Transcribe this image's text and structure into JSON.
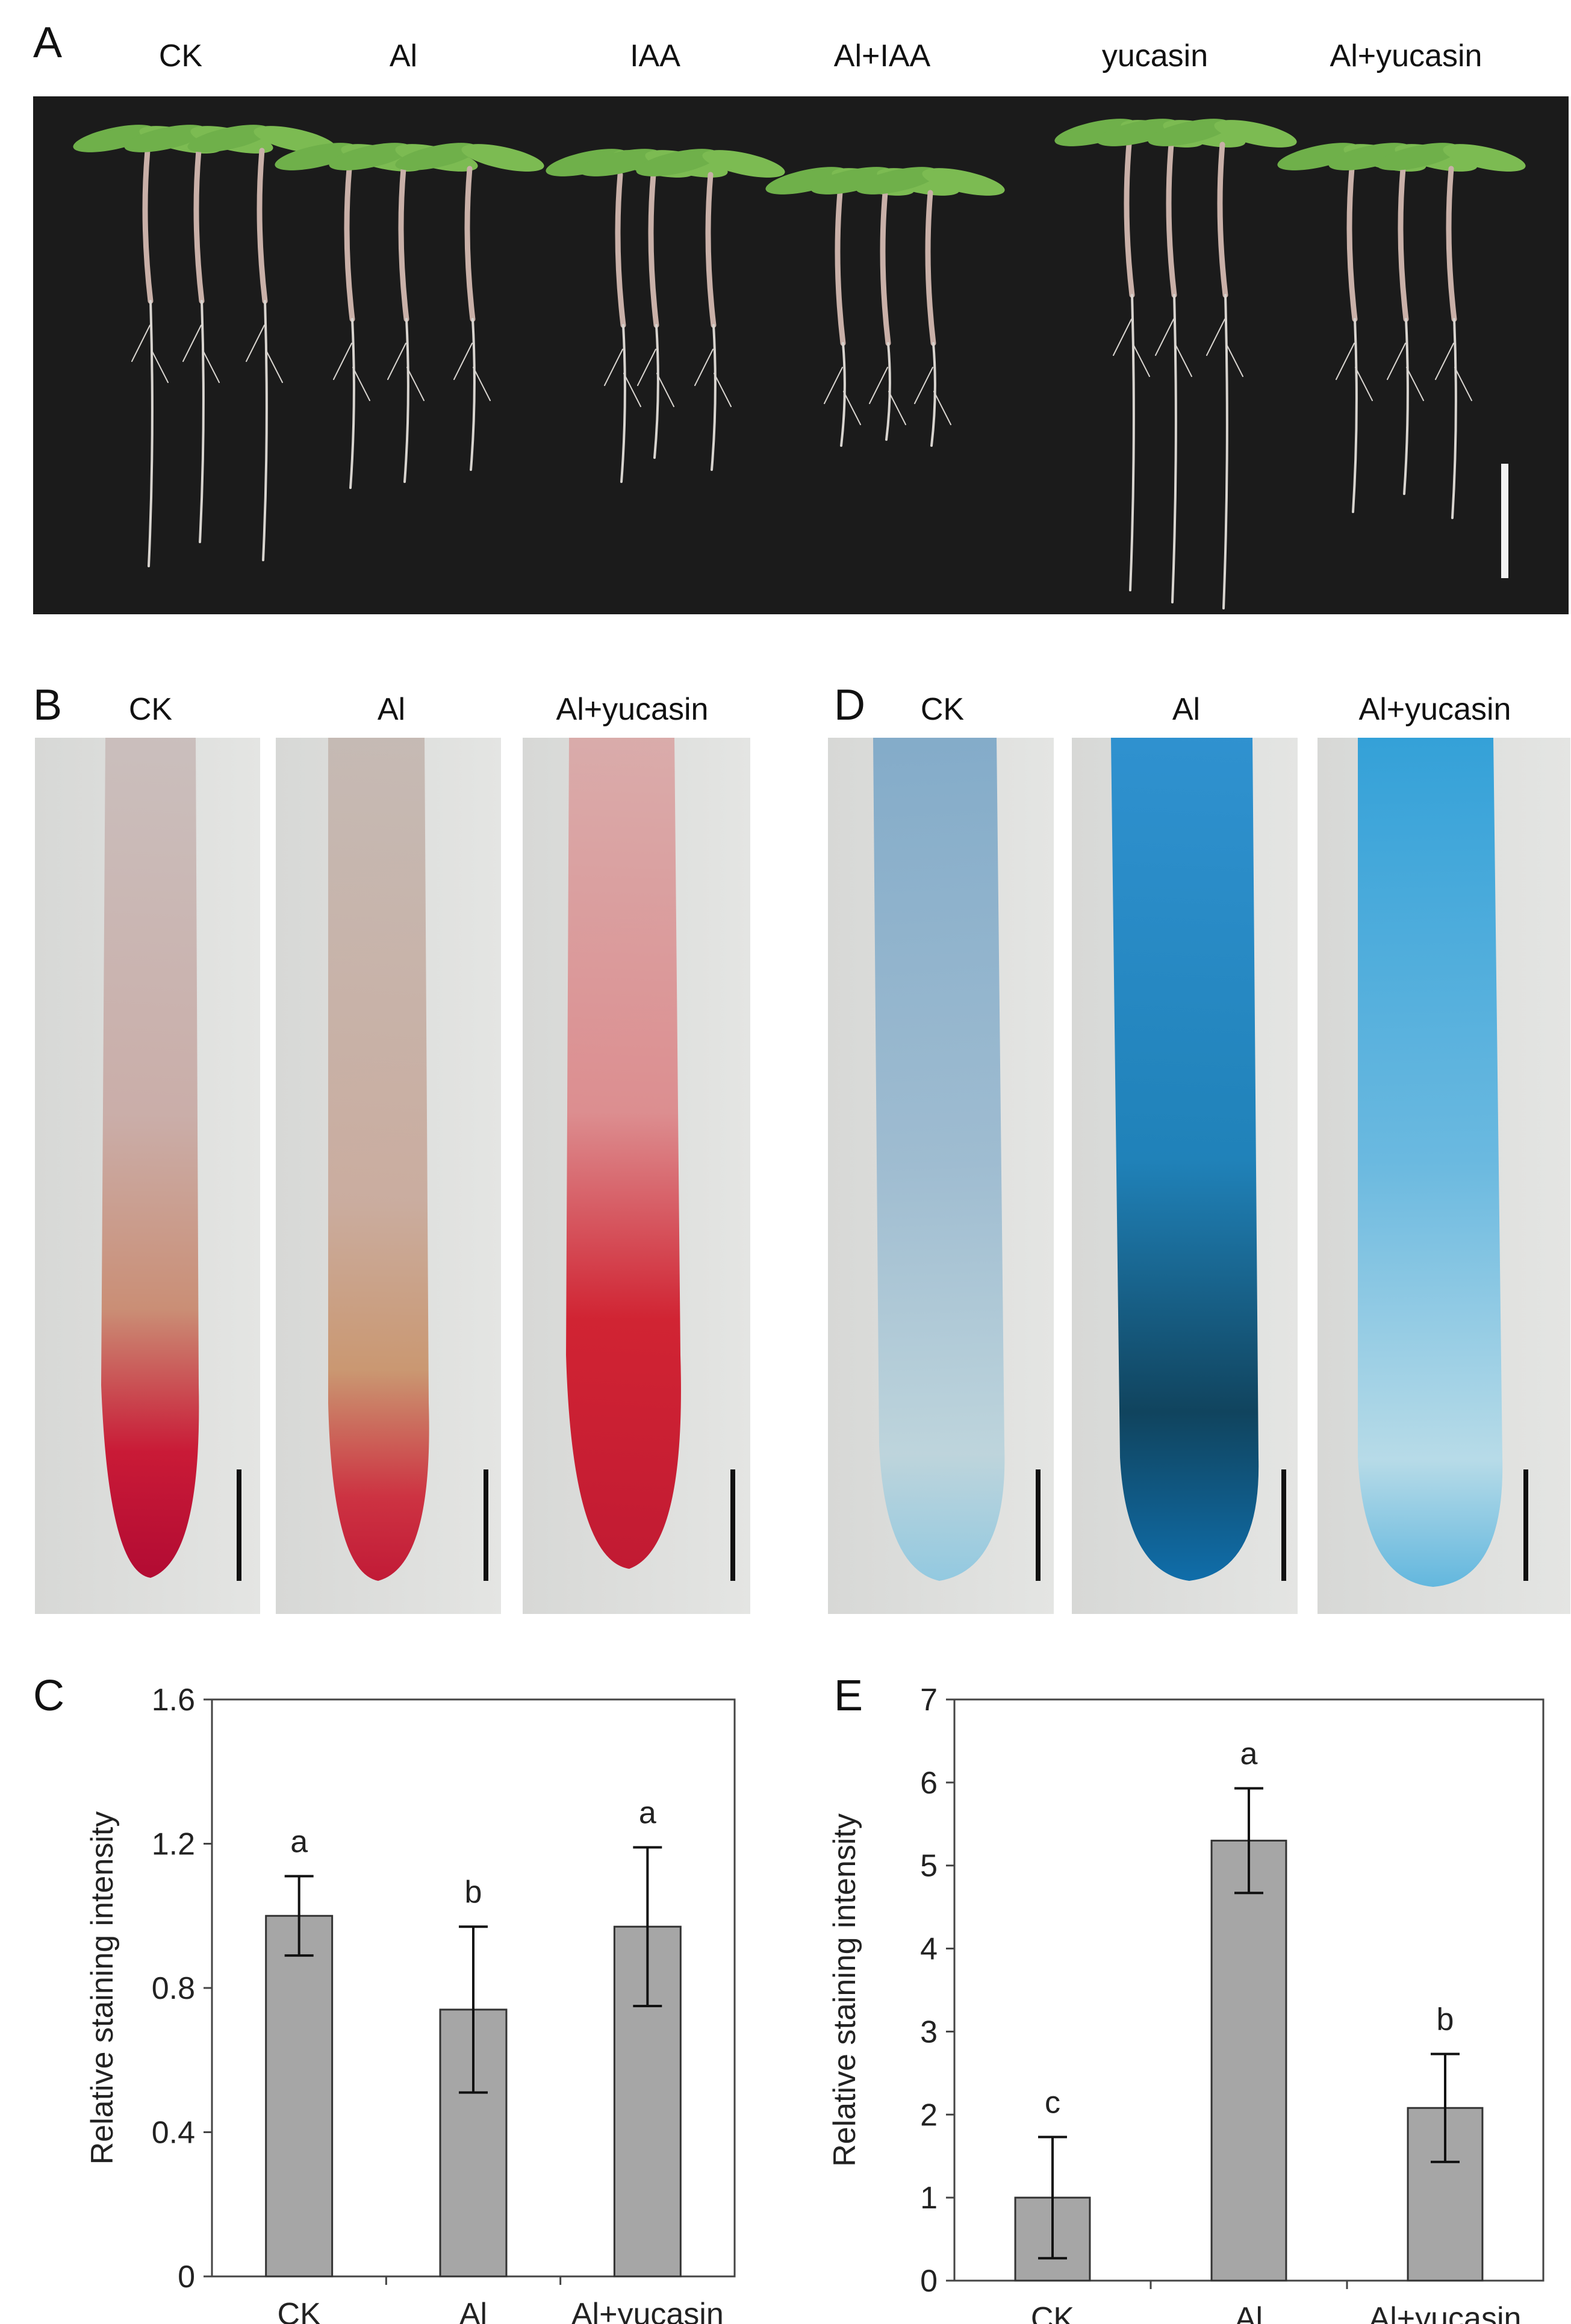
{
  "panel_a": {
    "letter": "A",
    "labels": [
      "CK",
      "Al",
      "IAA",
      "Al+IAA",
      "yucasin",
      "Al+yucasin"
    ]
  },
  "panel_b": {
    "letter": "B",
    "labels": [
      "CK",
      "Al",
      "Al+yucasin"
    ]
  },
  "panel_d": {
    "letter": "D",
    "labels": [
      "CK",
      "Al",
      "Al+yucasin"
    ]
  },
  "colors": {
    "bar_fill": "#a6a6a6",
    "photo_background_a": "#1b1b1b",
    "stain_red": "#c8102e",
    "stain_blue": "#1e90c8"
  },
  "chart_data": [
    {
      "panel": "C",
      "type": "bar",
      "categories": [
        "CK",
        "Al",
        "Al+yucasin"
      ],
      "values": [
        1.0,
        0.74,
        0.97
      ],
      "errors": [
        0.11,
        0.23,
        0.22
      ],
      "significance": [
        "a",
        "b",
        "a"
      ],
      "ylabel": "Relative staining intensity",
      "ylim": [
        0,
        1.6
      ],
      "yticks": [
        "0",
        "0.4",
        "0.8",
        "1.2",
        "1.6"
      ],
      "grid": false
    },
    {
      "panel": "E",
      "type": "bar",
      "categories": [
        "CK",
        "Al",
        "Al+yucasin"
      ],
      "values": [
        1.0,
        5.3,
        2.08
      ],
      "errors": [
        0.73,
        0.63,
        0.65
      ],
      "significance": [
        "c",
        "a",
        "b"
      ],
      "ylabel": "Relative staining intensity",
      "ylim": [
        0,
        7
      ],
      "yticks": [
        "0",
        "1",
        "2",
        "3",
        "4",
        "5",
        "6",
        "7"
      ],
      "grid": false
    }
  ]
}
